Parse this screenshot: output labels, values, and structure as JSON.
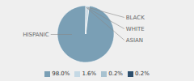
{
  "chart_data": {
    "type": "pie",
    "categories": [
      "HISPANIC",
      "BLACK",
      "WHITE",
      "ASIAN"
    ],
    "values": [
      98.0,
      1.6,
      0.2,
      0.2
    ],
    "value_labels": [
      "98.0%",
      "1.6%",
      "0.2%",
      "0.2%"
    ],
    "colors": [
      "#7a9fb5",
      "#c5d9e5",
      "#a8c2d0",
      "#2d4f6e"
    ],
    "legend": "bottom"
  }
}
